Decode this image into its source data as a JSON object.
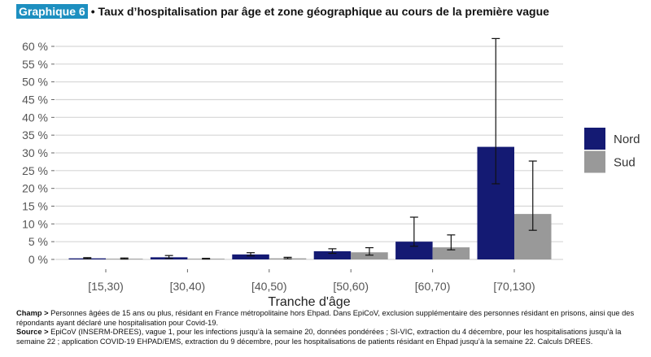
{
  "header": {
    "badge": "Graphique 6",
    "title": "• Taux d’hospitalisation par âge et zone géographique au cours de la première vague"
  },
  "chart_data": {
    "type": "bar",
    "xlabel": "Tranche d'âge",
    "ylabel": "",
    "ylim": [
      0,
      60
    ],
    "yticks": [
      "0 %",
      "5 %",
      "10 %",
      "15 %",
      "20 %",
      "25 %",
      "30 %",
      "35 %",
      "40 %",
      "45 %",
      "50 %",
      "55 %",
      "60 %"
    ],
    "categories": [
      "[15,30)",
      "[30,40)",
      "[40,50)",
      "[50,60)",
      "[60,70)",
      "[70,130)"
    ],
    "grid": true,
    "legend_position": "right",
    "series": [
      {
        "name": "Nord",
        "color": "#141a73",
        "values": [
          0.3,
          0.6,
          1.4,
          2.3,
          5.0,
          31.7
        ],
        "err_low": [
          0.2,
          0.3,
          1.0,
          1.7,
          3.7,
          21.3
        ],
        "err_high": [
          0.5,
          1.1,
          1.9,
          3.0,
          11.9,
          62.2
        ]
      },
      {
        "name": "Sud",
        "color": "#999999",
        "values": [
          0.2,
          0.2,
          0.3,
          2.0,
          3.4,
          12.8
        ],
        "err_low": [
          0.1,
          0.1,
          0.2,
          1.2,
          2.7,
          8.2
        ],
        "err_high": [
          0.4,
          0.3,
          0.6,
          3.3,
          6.9,
          27.7
        ]
      }
    ]
  },
  "notes": {
    "champ_label": "Champ >",
    "champ_text": " Personnes âgées de 15 ans ou plus, résidant en France métropolitaine hors Ehpad. Dans EpiCoV, exclusion supplémentaire des personnes résidant en prisons, ainsi que des répondants ayant déclaré une hospitalisation pour Covid-19.",
    "source_label": "Source >",
    "source_text": " EpiCoV (INSERM-DREES), vague 1, pour les infections jusqu’à la semaine 20, données pondérées ; SI-VIC, extraction du 4 décembre, pour les hospitalisations jusqu’à la semaine 22 ; application COVID-19 EHPAD/EMS, extraction du 9 décembre, pour les hospitalisations de patients résidant en Ehpad jusqu’à la semaine 22. Calculs DREES."
  }
}
